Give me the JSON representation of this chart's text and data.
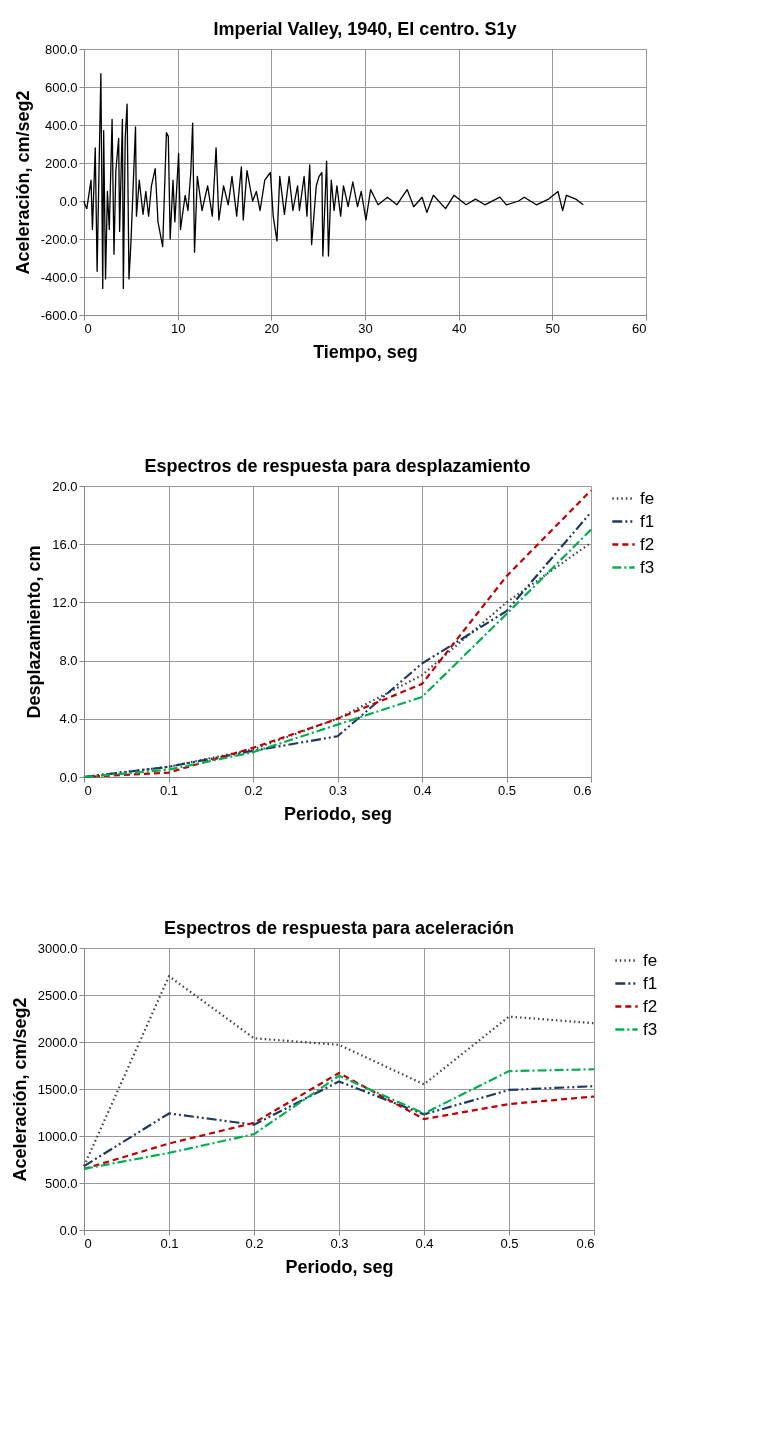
{
  "chart_data": [
    {
      "type": "line",
      "title": "Imperial Valley, 1940, El centro. S1y",
      "xlabel": "Tiempo, seg",
      "ylabel": "Aceleración, cm/seg2",
      "x": [
        0,
        0.1,
        0.3,
        0.75,
        0.9,
        1.2,
        1.4,
        1.8,
        2.0,
        2.1,
        2.3,
        2.5,
        2.7,
        3.0,
        3.2,
        3.4,
        3.7,
        3.8,
        4.1,
        4.2,
        4.4,
        4.6,
        4.8,
        5.0,
        5.5,
        5.6,
        5.9,
        6.3,
        6.6,
        6.9,
        7.2,
        7.6,
        7.9,
        8.4,
        8.8,
        9.0,
        9.2,
        9.5,
        9.7,
        10.1,
        10.3,
        10.8,
        11.1,
        11.4,
        11.6,
        11.8,
        12.1,
        12.6,
        13.2,
        13.7,
        14.1,
        14.4,
        14.9,
        15.4,
        15.8,
        16.3,
        16.8,
        17.0,
        17.4,
        18.0,
        18.4,
        18.8,
        19.3,
        19.9,
        20.2,
        20.6,
        20.9,
        21.4,
        21.9,
        22.3,
        22.8,
        23.0,
        23.5,
        23.8,
        24.1,
        24.3,
        24.8,
        25.1,
        25.4,
        25.5,
        25.9,
        26.1,
        26.4,
        26.7,
        27.0,
        27.4,
        27.7,
        28.2,
        28.7,
        29.2,
        29.6,
        30.1,
        30.6,
        31.4,
        32.4,
        33.4,
        34.5,
        35.2,
        36.1,
        36.6,
        37.3,
        38.6,
        39.5,
        40.8,
        41.8,
        42.8,
        44.4,
        45.1,
        46.4,
        47.0,
        48.3,
        49.6,
        50.6,
        51.1,
        51.5,
        52.5,
        53.3
      ],
      "series": [
        {
          "color": "#000000",
          "values": [
            0,
            -20,
            -40,
            110,
            -150,
            280,
            -370,
            670,
            -460,
            370,
            -410,
            50,
            -150,
            430,
            -280,
            160,
            330,
            -160,
            430,
            -460,
            330,
            510,
            -410,
            -230,
            390,
            -80,
            110,
            -70,
            50,
            -80,
            80,
            170,
            -110,
            -240,
            360,
            340,
            -200,
            110,
            -110,
            250,
            -150,
            30,
            -50,
            150,
            410,
            -270,
            130,
            -50,
            80,
            -80,
            280,
            -100,
            80,
            -20,
            130,
            -80,
            180,
            -100,
            160,
            0,
            50,
            -50,
            110,
            150,
            -80,
            -210,
            130,
            -70,
            130,
            -50,
            80,
            -50,
            130,
            -80,
            190,
            -230,
            80,
            130,
            150,
            -290,
            210,
            -290,
            110,
            -50,
            80,
            -80,
            80,
            -30,
            100,
            -30,
            50,
            -100,
            60,
            -20,
            20,
            -20,
            60,
            -30,
            20,
            -60,
            30,
            -40,
            30,
            -20,
            10,
            -20,
            20,
            -20,
            0,
            20,
            -20,
            10,
            50,
            -50,
            30,
            10,
            -20
          ]
        }
      ],
      "xlim": [
        0,
        60
      ],
      "xticks": [
        0,
        10,
        20,
        30,
        40,
        50,
        60
      ],
      "ylim": [
        -600,
        800
      ],
      "yticks": [
        {
          "value": -600,
          "label": "-600.0"
        },
        {
          "value": -400,
          "label": "-400.0"
        },
        {
          "value": -200,
          "label": "-200.0"
        },
        {
          "value": 0,
          "label": "0.0"
        },
        {
          "value": 200,
          "label": "200.0"
        },
        {
          "value": 400,
          "label": "400.0"
        },
        {
          "value": 600,
          "label": "600.0"
        },
        {
          "value": 800,
          "label": "800.0"
        }
      ],
      "grid": true,
      "line_style": "solid",
      "marker": "none"
    },
    {
      "type": "line",
      "title": "Espectros de respuesta para desplazamiento",
      "xlabel": "Periodo, seg",
      "ylabel": "Desplazamiento, cm",
      "x": [
        0,
        0.1,
        0.2,
        0.3,
        0.4,
        0.5,
        0.6
      ],
      "series": [
        {
          "name": "fe",
          "color": "#404040",
          "line_style": "dotted",
          "values": [
            0,
            0.7,
            1.9,
            4.0,
            7.0,
            12.0,
            16.1
          ]
        },
        {
          "name": "f1",
          "color": "#1f3864",
          "line_style": "dashdotdot",
          "values": [
            0,
            0.7,
            1.8,
            2.8,
            7.8,
            11.4,
            18.2
          ]
        },
        {
          "name": "f2",
          "color": "#c00000",
          "line_style": "dashed",
          "values": [
            0,
            0.3,
            2.0,
            4.0,
            6.4,
            13.8,
            19.7
          ]
        },
        {
          "name": "f3",
          "color": "#00b050",
          "line_style": "dashdot",
          "values": [
            0,
            0.5,
            1.7,
            3.6,
            5.5,
            11.2,
            17.0
          ]
        }
      ],
      "xlim": [
        0,
        0.6
      ],
      "xticks": [
        0,
        0.1,
        0.2,
        0.3,
        0.4,
        0.5,
        0.6
      ],
      "ylim": [
        0,
        20
      ],
      "yticks": [
        {
          "value": 0,
          "label": "0.0"
        },
        {
          "value": 4,
          "label": "4.0"
        },
        {
          "value": 8,
          "label": "8.0"
        },
        {
          "value": 12,
          "label": "12.0"
        },
        {
          "value": 16,
          "label": "16.0"
        },
        {
          "value": 20,
          "label": "20.0"
        }
      ],
      "grid": true,
      "legend": "right",
      "marker": "none"
    },
    {
      "type": "line",
      "title": "Espectros de respuesta para aceleración",
      "xlabel": "Periodo, seg",
      "ylabel": "Aceleración, cm/seg2",
      "x": [
        0,
        0.1,
        0.2,
        0.3,
        0.4,
        0.5,
        0.6
      ],
      "series": [
        {
          "name": "fe",
          "color": "#404040",
          "line_style": "dotted",
          "values": [
            680,
            2700,
            2040,
            1970,
            1550,
            2270,
            2200
          ]
        },
        {
          "name": "f1",
          "color": "#1f3864",
          "line_style": "dashdotdot",
          "values": [
            680,
            1240,
            1120,
            1580,
            1230,
            1490,
            1530
          ]
        },
        {
          "name": "f2",
          "color": "#c00000",
          "line_style": "dashed",
          "values": [
            650,
            920,
            1140,
            1670,
            1180,
            1340,
            1420
          ]
        },
        {
          "name": "f3",
          "color": "#00b050",
          "line_style": "dashdot",
          "values": [
            650,
            820,
            1020,
            1640,
            1240,
            1690,
            1710
          ]
        }
      ],
      "xlim": [
        0,
        0.6
      ],
      "xticks": [
        0,
        0.1,
        0.2,
        0.3,
        0.4,
        0.5,
        0.6
      ],
      "ylim": [
        0,
        3000
      ],
      "yticks": [
        {
          "value": 0,
          "label": "0.0"
        },
        {
          "value": 500,
          "label": "500.0"
        },
        {
          "value": 1000,
          "label": "1000.0"
        },
        {
          "value": 1500,
          "label": "1500.0"
        },
        {
          "value": 2000,
          "label": "2000.0"
        },
        {
          "value": 2500,
          "label": "2500.0"
        },
        {
          "value": 3000,
          "label": "3000.0"
        }
      ],
      "grid": true,
      "legend": "right",
      "marker": "none"
    }
  ]
}
